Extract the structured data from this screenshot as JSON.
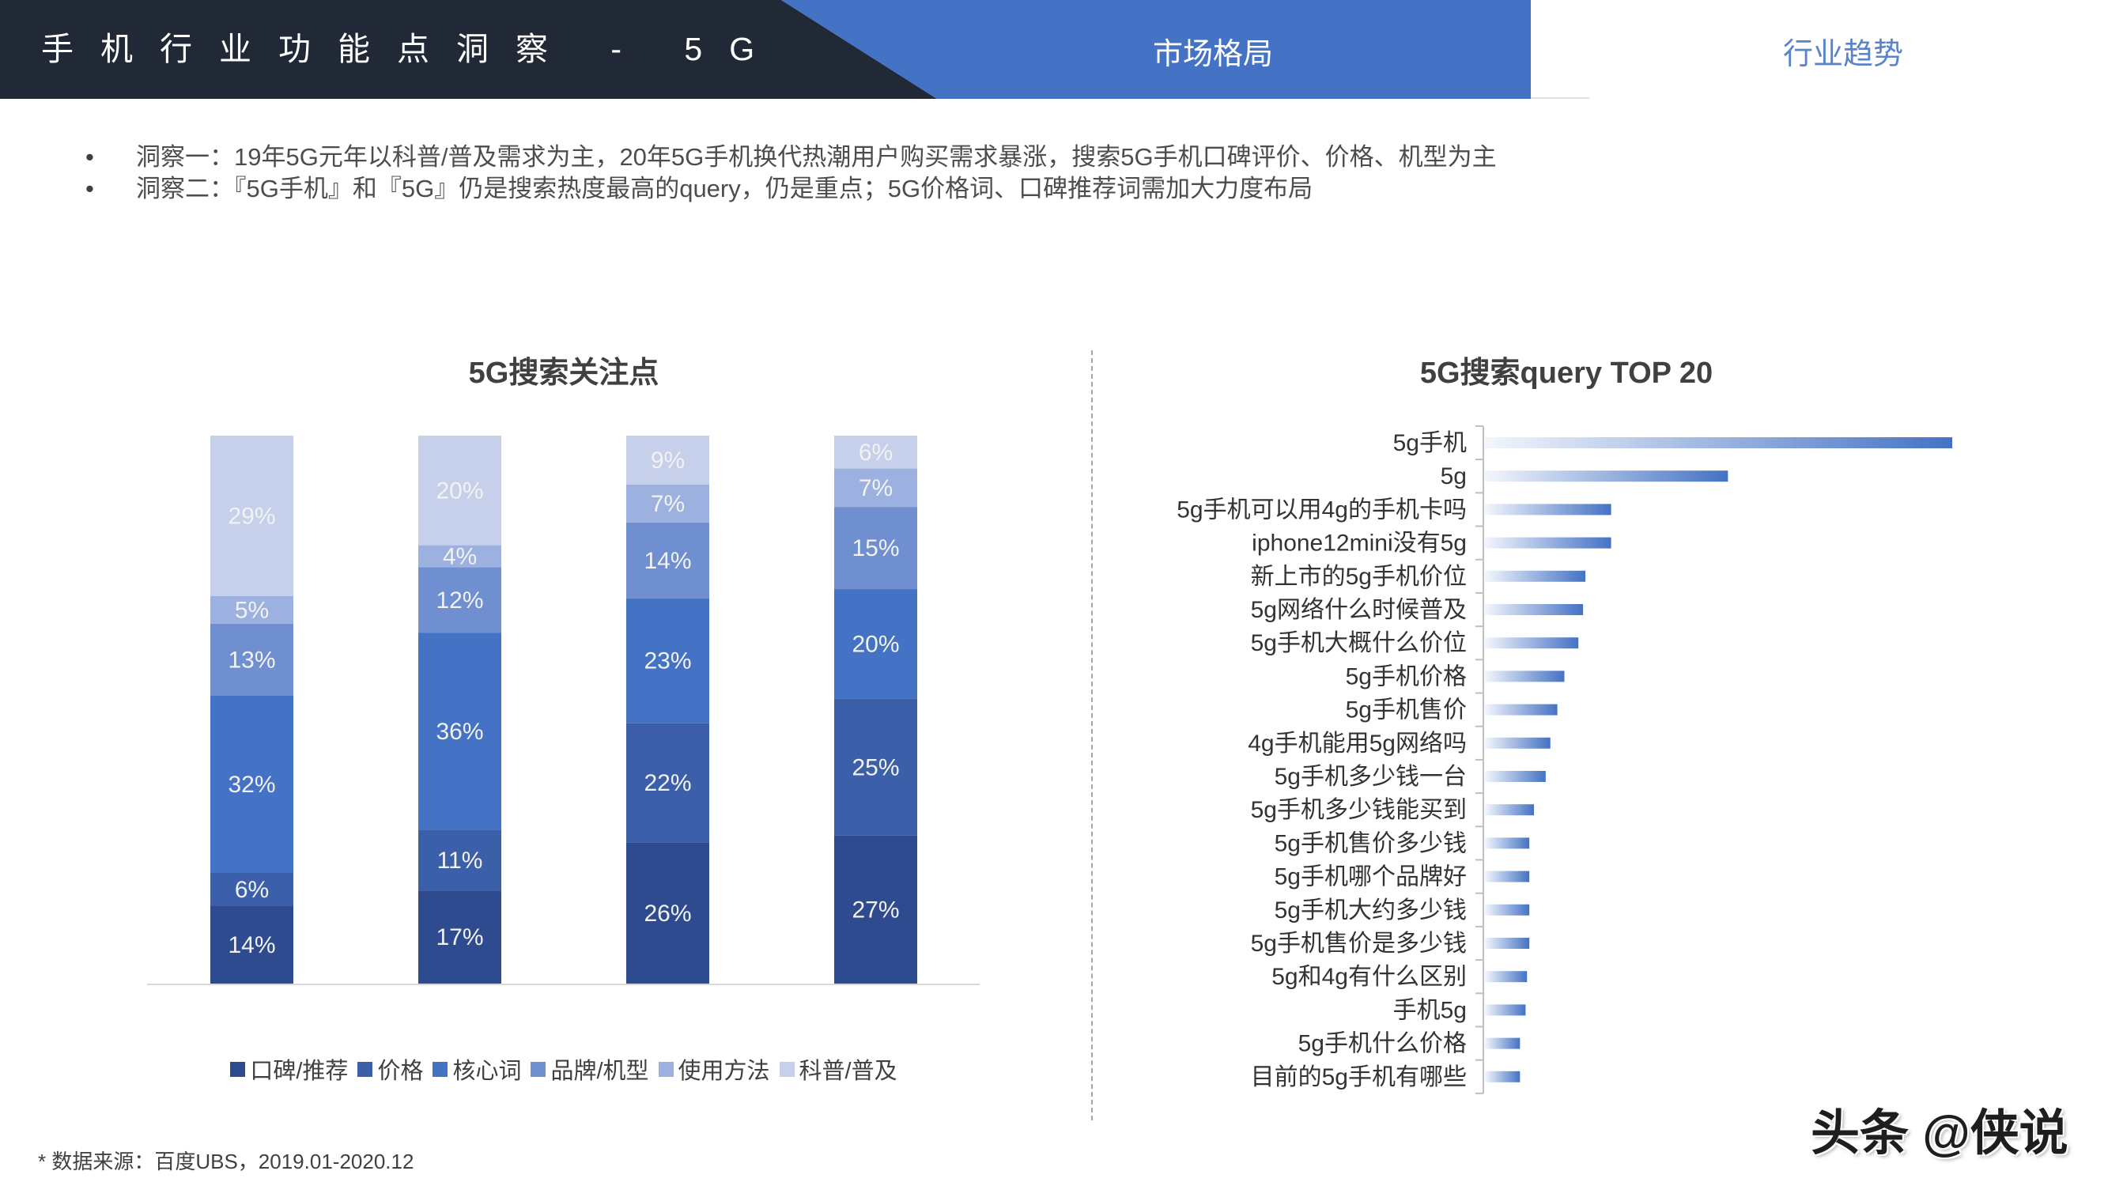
{
  "header": {
    "title": "手机行业功能点洞察 - 5G",
    "tab_market": "市场格局",
    "tab_trend": "行业趋势"
  },
  "colors": {
    "header_dark": "#222936",
    "accent": "#4472c4",
    "tab_inactive_text": "#5b83c7"
  },
  "insights": [
    {
      "bullet": "•",
      "text": "洞察一：19年5G元年以科普/普及需求为主，20年5G手机换代热潮用户购买需求暴涨，搜索5G手机口碑评价、价格、机型为主"
    },
    {
      "bullet": "•",
      "text": "洞察二：『5G手机』和『5G』仍是搜索热度最高的query，仍是重点；5G价格词、口碑推荐词需加大力度布局"
    }
  ],
  "chart_data": [
    {
      "type": "bar",
      "stacked": true,
      "title": "5G搜索关注点",
      "value_suffix": "%",
      "legend": "bottom",
      "grid": false,
      "series": [
        {
          "name": "口碑/推荐",
          "values": [
            14,
            17,
            26,
            27
          ],
          "color": "#2f4b8f"
        },
        {
          "name": "价格",
          "values": [
            6,
            11,
            22,
            25
          ],
          "color": "#3c5faa"
        },
        {
          "name": "核心词",
          "values": [
            32,
            36,
            23,
            20
          ],
          "color": "#4472c4"
        },
        {
          "name": "品牌/机型",
          "values": [
            13,
            12,
            14,
            15
          ],
          "color": "#6f8fd1"
        },
        {
          "name": "使用方法",
          "values": [
            5,
            4,
            7,
            7
          ],
          "color": "#9db1e1"
        },
        {
          "name": "科普/普及",
          "values": [
            29,
            20,
            9,
            6
          ],
          "color": "#c6d0ea"
        }
      ]
    },
    {
      "type": "bar",
      "orientation": "horizontal",
      "title": "5G搜索query TOP 20",
      "grid": false,
      "xlim": [
        0,
        100
      ],
      "bar_gradient": [
        "#f3f6fc",
        "#4472c4"
      ],
      "categories": [
        "5g手机",
        "5g",
        "5g手机可以用4g的手机卡吗",
        "iphone12mini没有5g",
        "新上市的5g手机价位",
        "5g网络什么时候普及",
        "5g手机大概什么价位",
        "5g手机价格",
        "5g手机售价",
        "4g手机能用5g网络吗",
        "5g手机多少钱一台",
        "5g手机多少钱能买到",
        "5g手机售价多少钱",
        "5g手机哪个品牌好",
        "5g手机大约多少钱",
        "5g手机售价是多少钱",
        "5g和4g有什么区别",
        "手机5g",
        "5g手机什么价格",
        "目前的5g手机有哪些"
      ],
      "values": [
        100,
        52,
        27,
        27,
        21.5,
        21,
        20,
        17,
        15.5,
        14,
        13,
        10.5,
        9.5,
        9.5,
        9.5,
        9.5,
        9,
        8.7,
        7.5,
        7.5
      ]
    }
  ],
  "footer": {
    "source": "* 数据来源：百度UBS，2019.01-2020.12"
  },
  "watermark": "头条 @侠说"
}
